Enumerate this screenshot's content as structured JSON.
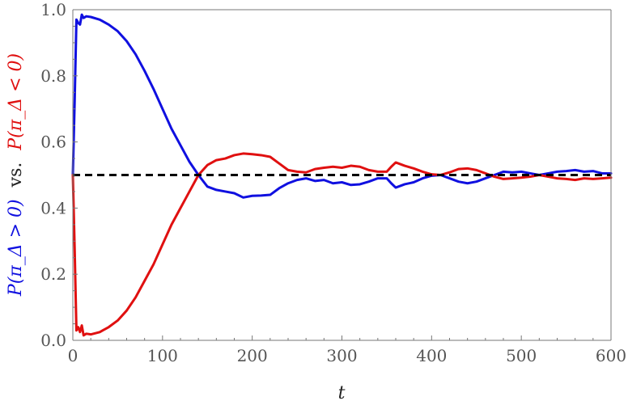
{
  "chart_data": {
    "type": "line",
    "title": "",
    "xlabel": "t",
    "ylabel": {
      "blue_part": "P(π_Δ > 0)",
      "middle": "vs.",
      "red_part": "P(π_Δ < 0)"
    },
    "xlim": [
      0,
      600
    ],
    "ylim": [
      0,
      1
    ],
    "x_ticks": [
      "0",
      "100",
      "200",
      "300",
      "400",
      "500",
      "600"
    ],
    "y_ticks": [
      "0.0",
      "0.2",
      "0.4",
      "0.6",
      "0.8",
      "1.0"
    ],
    "grid": false,
    "legend": "none",
    "colors": {
      "blue": "#1010e0",
      "red": "#e01010",
      "reference": "#000000"
    },
    "series": [
      {
        "color": "blue",
        "points": [
          [
            0,
            0.5
          ],
          [
            2,
            0.72
          ],
          [
            4,
            0.97
          ],
          [
            6,
            0.96
          ],
          [
            8,
            0.955
          ],
          [
            10,
            0.985
          ],
          [
            12,
            0.975
          ],
          [
            15,
            0.98
          ],
          [
            20,
            0.978
          ],
          [
            30,
            0.97
          ],
          [
            40,
            0.955
          ],
          [
            50,
            0.935
          ],
          [
            60,
            0.905
          ],
          [
            70,
            0.865
          ],
          [
            80,
            0.815
          ],
          [
            90,
            0.76
          ],
          [
            100,
            0.7
          ],
          [
            110,
            0.64
          ],
          [
            120,
            0.59
          ],
          [
            130,
            0.54
          ],
          [
            140,
            0.5
          ],
          [
            150,
            0.465
          ],
          [
            160,
            0.455
          ],
          [
            170,
            0.45
          ],
          [
            180,
            0.445
          ],
          [
            190,
            0.432
          ],
          [
            200,
            0.437
          ],
          [
            210,
            0.438
          ],
          [
            220,
            0.44
          ],
          [
            230,
            0.46
          ],
          [
            240,
            0.475
          ],
          [
            250,
            0.485
          ],
          [
            260,
            0.49
          ],
          [
            270,
            0.482
          ],
          [
            280,
            0.485
          ],
          [
            290,
            0.475
          ],
          [
            300,
            0.478
          ],
          [
            310,
            0.47
          ],
          [
            320,
            0.472
          ],
          [
            330,
            0.48
          ],
          [
            340,
            0.49
          ],
          [
            350,
            0.49
          ],
          [
            355,
            0.475
          ],
          [
            360,
            0.462
          ],
          [
            370,
            0.472
          ],
          [
            380,
            0.478
          ],
          [
            390,
            0.49
          ],
          [
            400,
            0.498
          ],
          [
            410,
            0.5
          ],
          [
            420,
            0.49
          ],
          [
            430,
            0.48
          ],
          [
            440,
            0.475
          ],
          [
            450,
            0.48
          ],
          [
            460,
            0.49
          ],
          [
            470,
            0.5
          ],
          [
            480,
            0.51
          ],
          [
            490,
            0.508
          ],
          [
            500,
            0.51
          ],
          [
            510,
            0.505
          ],
          [
            520,
            0.5
          ],
          [
            530,
            0.505
          ],
          [
            540,
            0.51
          ],
          [
            550,
            0.512
          ],
          [
            560,
            0.515
          ],
          [
            570,
            0.51
          ],
          [
            580,
            0.512
          ],
          [
            590,
            0.505
          ],
          [
            600,
            0.505
          ]
        ]
      },
      {
        "color": "red",
        "points": [
          [
            0,
            0.5
          ],
          [
            2,
            0.28
          ],
          [
            4,
            0.03
          ],
          [
            6,
            0.04
          ],
          [
            8,
            0.025
          ],
          [
            10,
            0.045
          ],
          [
            12,
            0.015
          ],
          [
            15,
            0.02
          ],
          [
            20,
            0.018
          ],
          [
            30,
            0.025
          ],
          [
            40,
            0.04
          ],
          [
            50,
            0.06
          ],
          [
            60,
            0.09
          ],
          [
            70,
            0.13
          ],
          [
            80,
            0.18
          ],
          [
            90,
            0.23
          ],
          [
            100,
            0.29
          ],
          [
            110,
            0.35
          ],
          [
            120,
            0.4
          ],
          [
            130,
            0.45
          ],
          [
            140,
            0.5
          ],
          [
            150,
            0.53
          ],
          [
            160,
            0.545
          ],
          [
            170,
            0.55
          ],
          [
            180,
            0.56
          ],
          [
            190,
            0.565
          ],
          [
            200,
            0.563
          ],
          [
            210,
            0.56
          ],
          [
            220,
            0.555
          ],
          [
            230,
            0.535
          ],
          [
            240,
            0.515
          ],
          [
            250,
            0.51
          ],
          [
            260,
            0.508
          ],
          [
            270,
            0.518
          ],
          [
            280,
            0.522
          ],
          [
            290,
            0.525
          ],
          [
            300,
            0.522
          ],
          [
            310,
            0.528
          ],
          [
            320,
            0.525
          ],
          [
            330,
            0.515
          ],
          [
            340,
            0.51
          ],
          [
            350,
            0.51
          ],
          [
            355,
            0.525
          ],
          [
            360,
            0.538
          ],
          [
            370,
            0.528
          ],
          [
            380,
            0.52
          ],
          [
            390,
            0.51
          ],
          [
            400,
            0.502
          ],
          [
            410,
            0.5
          ],
          [
            420,
            0.508
          ],
          [
            430,
            0.518
          ],
          [
            440,
            0.52
          ],
          [
            450,
            0.515
          ],
          [
            460,
            0.505
          ],
          [
            470,
            0.495
          ],
          [
            480,
            0.488
          ],
          [
            490,
            0.49
          ],
          [
            500,
            0.492
          ],
          [
            510,
            0.495
          ],
          [
            520,
            0.5
          ],
          [
            530,
            0.495
          ],
          [
            540,
            0.49
          ],
          [
            550,
            0.488
          ],
          [
            560,
            0.485
          ],
          [
            570,
            0.49
          ],
          [
            580,
            0.488
          ],
          [
            590,
            0.49
          ],
          [
            600,
            0.492
          ]
        ]
      }
    ],
    "reference_line": {
      "y": 0.5,
      "style": "dashed",
      "color": "reference"
    }
  }
}
